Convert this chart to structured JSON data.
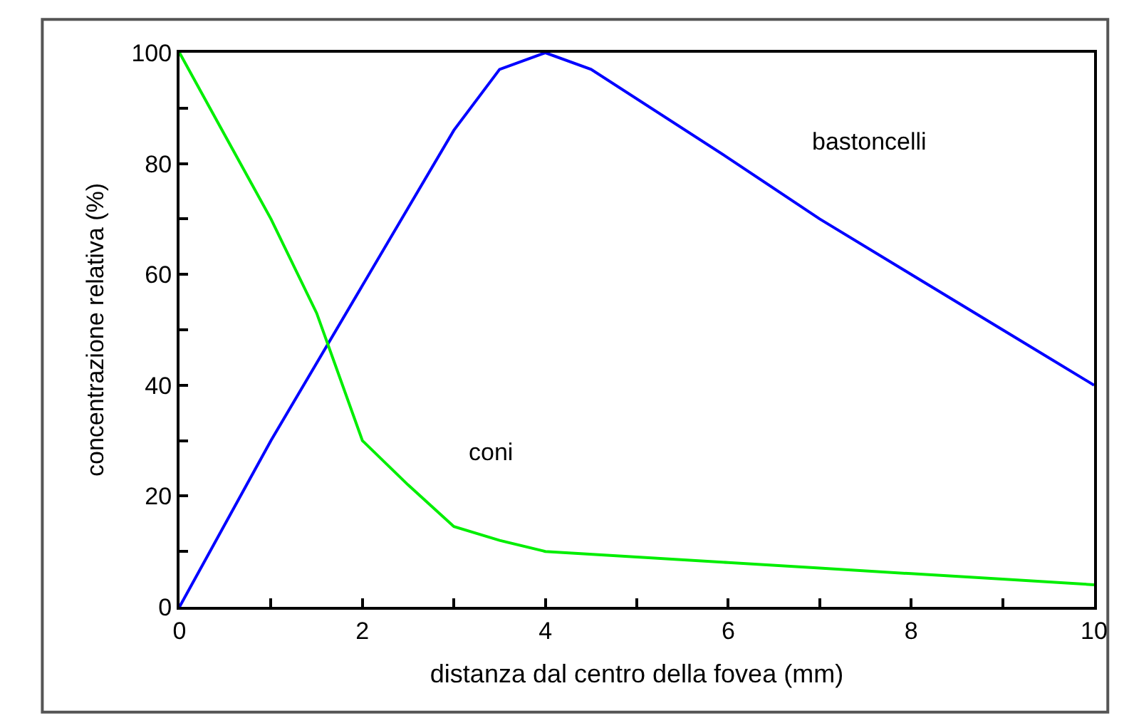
{
  "chart_data": {
    "type": "line",
    "xlabel": "distanza dal centro della fovea (mm)",
    "ylabel": "concentrazione relativa (%)",
    "xlim": [
      0,
      10
    ],
    "ylim": [
      0,
      100
    ],
    "xticks": [
      0,
      {
        "value": 1,
        "label": null
      },
      2,
      {
        "value": 3,
        "label": null
      },
      4,
      {
        "value": 5,
        "label": null
      },
      6,
      {
        "value": 7,
        "label": null
      },
      8,
      {
        "value": 9,
        "label": null
      },
      10
    ],
    "yticks": [
      0,
      {
        "value": 10,
        "label": null
      },
      20,
      {
        "value": 30,
        "label": null
      },
      40,
      {
        "value": 50,
        "label": null
      },
      60,
      {
        "value": 70,
        "label": null
      },
      80,
      {
        "value": 90,
        "label": null
      },
      100
    ],
    "legend": false,
    "marker": "none",
    "line_style": "solid",
    "series": [
      {
        "name": "bastoncelli",
        "color": "#0000ff",
        "x": [
          0,
          1,
          2,
          3,
          3.5,
          4,
          4.5,
          6,
          7,
          8,
          9,
          10
        ],
        "values": [
          0,
          30,
          58,
          86,
          97,
          100,
          97,
          81,
          70,
          60,
          50,
          40
        ]
      },
      {
        "name": "coni",
        "color": "#00ee00",
        "x": [
          0,
          0.5,
          1,
          1.5,
          2,
          2.5,
          3,
          3.5,
          4,
          5,
          6,
          7,
          8,
          9,
          10
        ],
        "values": [
          100,
          85,
          70,
          53,
          30,
          22,
          14.5,
          12,
          10,
          9,
          8,
          7,
          6,
          5,
          4
        ]
      }
    ]
  }
}
